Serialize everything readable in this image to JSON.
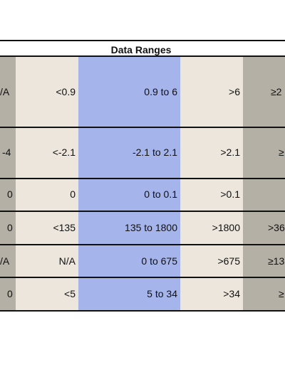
{
  "table": {
    "title": "Data Ranges",
    "rows": [
      [
        "/A",
        "<0.9",
        "0.9 to 6",
        ">6",
        "≥2"
      ],
      [
        "-4",
        "<-2.1",
        "-2.1 to 2.1",
        ">2.1",
        "≥"
      ],
      [
        "0",
        "0",
        "0 to 0.1",
        ">0.1",
        ""
      ],
      [
        "0",
        "<135",
        "135 to 1800",
        ">1800",
        ">36"
      ],
      [
        "/A",
        "N/A",
        "0 to 675",
        ">675",
        "≥13"
      ],
      [
        "0",
        "<5",
        "5  to 34",
        ">34",
        "≥"
      ]
    ]
  },
  "colors": {
    "band_gray": "#b4b0a6",
    "band_beige": "#ece6dc",
    "band_blue": "#a6b4ec",
    "border": "#111111"
  }
}
